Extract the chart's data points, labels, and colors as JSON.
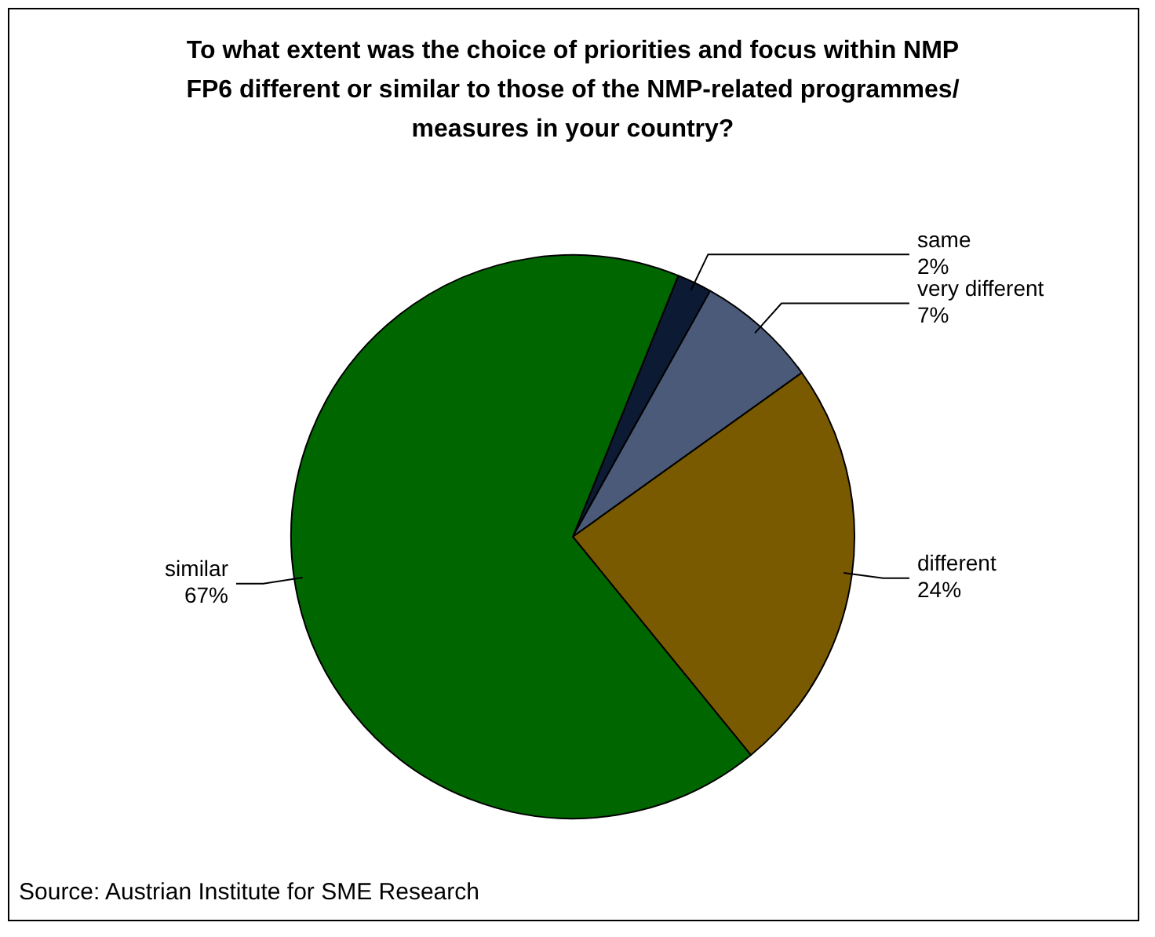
{
  "chart_data": {
    "type": "pie",
    "title": "To what extent was the choice of priorities and focus within NMP FP6 different or similar to those of the NMP-related programmes/ measures in your country?",
    "categories": [
      "same",
      "very different",
      "different",
      "similar"
    ],
    "values": [
      2,
      7,
      24,
      67
    ],
    "value_labels": [
      "2%",
      "7%",
      "24%",
      "67%"
    ],
    "colors": [
      "#0d1a33",
      "#4a5a78",
      "#7a5a00",
      "#006600"
    ],
    "annotations": [
      "Source: Austrian Institute for SME Research"
    ]
  }
}
